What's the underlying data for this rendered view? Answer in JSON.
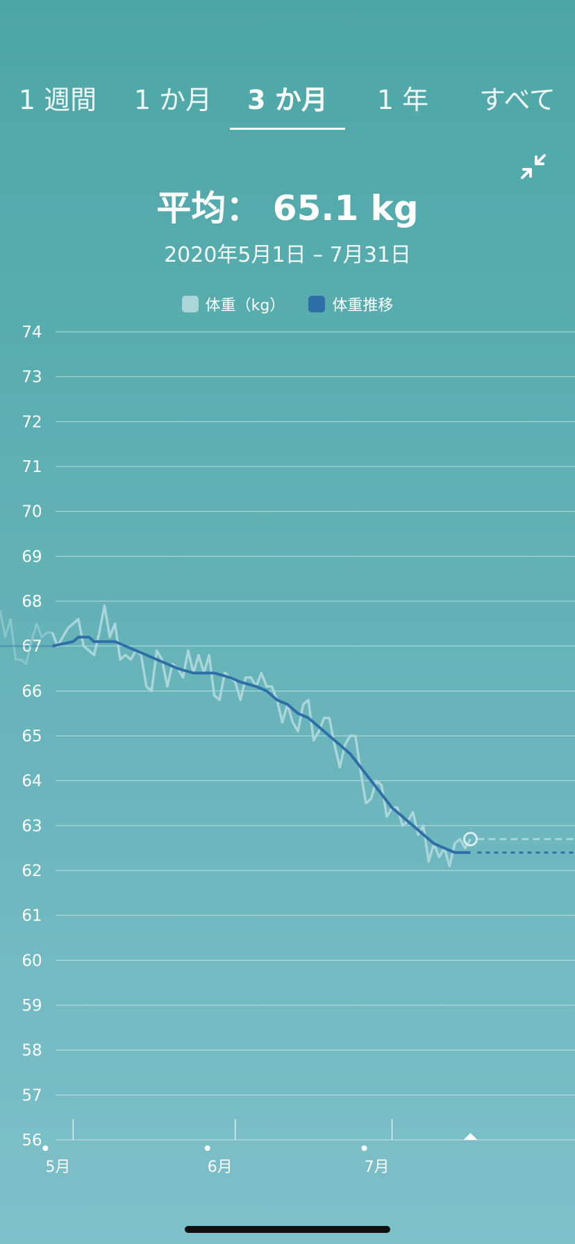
{
  "tabs": [
    {
      "label": "1 週間",
      "active": false
    },
    {
      "label": "1 か月",
      "active": false
    },
    {
      "label": "3 か月",
      "active": true
    },
    {
      "label": "1 年",
      "active": false
    },
    {
      "label": "すべて",
      "active": false
    }
  ],
  "summary": {
    "average": "平均： 65.1 kg",
    "range": "2020年5月1日 – 7月31日"
  },
  "colors": {
    "weight": "#aad6da",
    "trend": "#2f6fa8"
  },
  "chart_data": {
    "type": "line",
    "title": "",
    "xlabel": "",
    "ylabel": "",
    "ylim": [
      56,
      74
    ],
    "yticks": [
      74,
      73,
      72,
      71,
      70,
      69,
      68,
      67,
      66,
      65,
      64,
      63,
      62,
      61,
      60,
      59,
      58,
      57,
      56
    ],
    "xlim": [
      "2020-04-17",
      "2020-08-05"
    ],
    "xticks": [
      {
        "label": "5月",
        "date": "2020-05-01"
      },
      {
        "label": "6月",
        "date": "2020-06-01"
      },
      {
        "label": "7月",
        "date": "2020-07-01"
      }
    ],
    "grid": true,
    "legend": "top-center",
    "series": [
      {
        "name": "体重（kg）",
        "values": [
          [
            "2020-04-17",
            67.8
          ],
          [
            "2020-04-18",
            67.2
          ],
          [
            "2020-04-19",
            67.6
          ],
          [
            "2020-04-20",
            66.7
          ],
          [
            "2020-04-21",
            66.7
          ],
          [
            "2020-04-22",
            66.6
          ],
          [
            "2020-04-23",
            67.1
          ],
          [
            "2020-04-24",
            67.5
          ],
          [
            "2020-04-25",
            67.2
          ],
          [
            "2020-04-26",
            67.3
          ],
          [
            "2020-04-27",
            67.3
          ],
          [
            "2020-04-28",
            67.0
          ],
          [
            "2020-04-29",
            67.2
          ],
          [
            "2020-04-30",
            67.4
          ],
          [
            "2020-05-01",
            67.5
          ],
          [
            "2020-05-02",
            67.6
          ],
          [
            "2020-05-03",
            67.0
          ],
          [
            "2020-05-04",
            66.9
          ],
          [
            "2020-05-05",
            66.8
          ],
          [
            "2020-05-06",
            67.3
          ],
          [
            "2020-05-07",
            67.9
          ],
          [
            "2020-05-08",
            67.2
          ],
          [
            "2020-05-09",
            67.5
          ],
          [
            "2020-05-10",
            66.7
          ],
          [
            "2020-05-11",
            66.8
          ],
          [
            "2020-05-12",
            66.7
          ],
          [
            "2020-05-13",
            66.9
          ],
          [
            "2020-05-14",
            66.8
          ],
          [
            "2020-05-15",
            66.1
          ],
          [
            "2020-05-16",
            66.0
          ],
          [
            "2020-05-17",
            66.9
          ],
          [
            "2020-05-18",
            66.7
          ],
          [
            "2020-05-19",
            66.1
          ],
          [
            "2020-05-20",
            66.6
          ],
          [
            "2020-05-21",
            66.5
          ],
          [
            "2020-05-22",
            66.3
          ],
          [
            "2020-05-23",
            66.9
          ],
          [
            "2020-05-24",
            66.4
          ],
          [
            "2020-05-25",
            66.8
          ],
          [
            "2020-05-26",
            66.4
          ],
          [
            "2020-05-27",
            66.8
          ],
          [
            "2020-05-28",
            65.9
          ],
          [
            "2020-05-29",
            65.8
          ],
          [
            "2020-05-30",
            66.4
          ],
          [
            "2020-05-31",
            66.3
          ],
          [
            "2020-06-01",
            66.2
          ],
          [
            "2020-06-02",
            65.8
          ],
          [
            "2020-06-03",
            66.3
          ],
          [
            "2020-06-04",
            66.3
          ],
          [
            "2020-06-05",
            66.1
          ],
          [
            "2020-06-06",
            66.4
          ],
          [
            "2020-06-07",
            66.1
          ],
          [
            "2020-06-08",
            66.1
          ],
          [
            "2020-06-09",
            65.8
          ],
          [
            "2020-06-10",
            65.3
          ],
          [
            "2020-06-11",
            65.7
          ],
          [
            "2020-06-12",
            65.3
          ],
          [
            "2020-06-13",
            65.1
          ],
          [
            "2020-06-14",
            65.7
          ],
          [
            "2020-06-15",
            65.8
          ],
          [
            "2020-06-16",
            64.9
          ],
          [
            "2020-06-17",
            65.1
          ],
          [
            "2020-06-18",
            65.4
          ],
          [
            "2020-06-19",
            65.4
          ],
          [
            "2020-06-20",
            64.8
          ],
          [
            "2020-06-21",
            64.3
          ],
          [
            "2020-06-22",
            64.8
          ],
          [
            "2020-06-23",
            65.0
          ],
          [
            "2020-06-24",
            65.0
          ],
          [
            "2020-06-25",
            64.2
          ],
          [
            "2020-06-26",
            63.5
          ],
          [
            "2020-06-27",
            63.6
          ],
          [
            "2020-06-28",
            64.0
          ],
          [
            "2020-06-29",
            63.9
          ],
          [
            "2020-06-30",
            63.2
          ],
          [
            "2020-07-01",
            63.4
          ],
          [
            "2020-07-02",
            63.4
          ],
          [
            "2020-07-03",
            63.0
          ],
          [
            "2020-07-04",
            63.1
          ],
          [
            "2020-07-05",
            63.3
          ],
          [
            "2020-07-06",
            62.8
          ],
          [
            "2020-07-07",
            63.0
          ],
          [
            "2020-07-08",
            62.2
          ],
          [
            "2020-07-09",
            62.6
          ],
          [
            "2020-07-10",
            62.3
          ],
          [
            "2020-07-11",
            62.5
          ],
          [
            "2020-07-12",
            62.1
          ],
          [
            "2020-07-13",
            62.6
          ],
          [
            "2020-07-14",
            62.7
          ],
          [
            "2020-07-15",
            62.5
          ],
          [
            "2020-07-16",
            62.7
          ]
        ]
      },
      {
        "name": "体重推移",
        "values": [
          [
            "2020-04-17",
            67.0
          ],
          [
            "2020-04-27",
            67.0
          ],
          [
            "2020-05-01",
            67.1
          ],
          [
            "2020-05-02",
            67.2
          ],
          [
            "2020-05-04",
            67.2
          ],
          [
            "2020-05-05",
            67.1
          ],
          [
            "2020-05-09",
            67.1
          ],
          [
            "2020-05-11",
            67.0
          ],
          [
            "2020-05-13",
            66.9
          ],
          [
            "2020-05-15",
            66.8
          ],
          [
            "2020-05-17",
            66.7
          ],
          [
            "2020-05-19",
            66.6
          ],
          [
            "2020-05-21",
            66.5
          ],
          [
            "2020-05-24",
            66.4
          ],
          [
            "2020-05-28",
            66.4
          ],
          [
            "2020-05-31",
            66.3
          ],
          [
            "2020-06-02",
            66.2
          ],
          [
            "2020-06-05",
            66.1
          ],
          [
            "2020-06-07",
            66.0
          ],
          [
            "2020-06-09",
            65.8
          ],
          [
            "2020-06-11",
            65.7
          ],
          [
            "2020-06-13",
            65.5
          ],
          [
            "2020-06-15",
            65.4
          ],
          [
            "2020-06-17",
            65.2
          ],
          [
            "2020-06-19",
            65.0
          ],
          [
            "2020-06-21",
            64.8
          ],
          [
            "2020-06-23",
            64.6
          ],
          [
            "2020-06-25",
            64.3
          ],
          [
            "2020-06-27",
            64.0
          ],
          [
            "2020-06-29",
            63.7
          ],
          [
            "2020-07-01",
            63.4
          ],
          [
            "2020-07-03",
            63.2
          ],
          [
            "2020-07-05",
            63.0
          ],
          [
            "2020-07-07",
            62.8
          ],
          [
            "2020-07-09",
            62.6
          ],
          [
            "2020-07-11",
            62.5
          ],
          [
            "2020-07-13",
            62.4
          ],
          [
            "2020-07-16",
            62.4
          ]
        ]
      }
    ],
    "projection": {
      "weight_last": [
        "2020-07-16",
        62.7
      ],
      "trend_last": [
        "2020-07-16",
        62.4
      ],
      "end": "2020-08-05"
    }
  }
}
